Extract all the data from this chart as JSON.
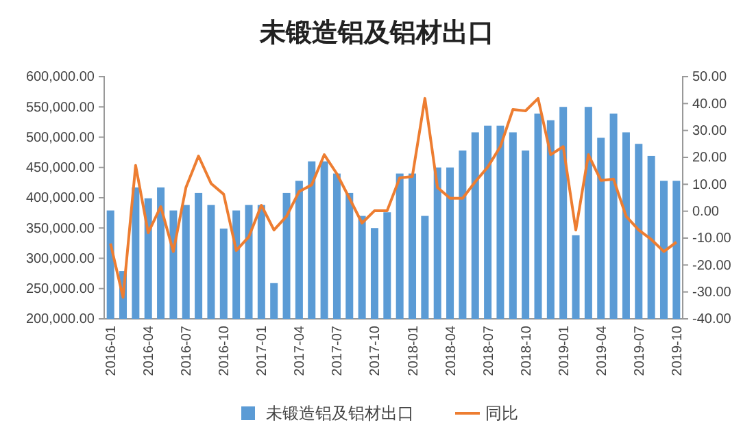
{
  "chart_data": {
    "type": "bar",
    "title": "未锻造铝及铝材出口",
    "categories": [
      "2016-01",
      null,
      null,
      "2016-04",
      null,
      null,
      "2016-07",
      null,
      null,
      "2016-10",
      null,
      null,
      "2017-01",
      null,
      null,
      "2017-04",
      null,
      null,
      "2017-07",
      null,
      null,
      "2017-10",
      null,
      null,
      "2018-01",
      null,
      null,
      "2018-04",
      null,
      null,
      "2018-07",
      null,
      null,
      "2018-10",
      null,
      null,
      "2019-01",
      null,
      null,
      "2019-04",
      null,
      null,
      "2019-07",
      null,
      null,
      "2019-10"
    ],
    "series": [
      {
        "name": "未锻造铝及铝材出口",
        "color": "#5b9bd5",
        "values": [
          379000,
          279000,
          417000,
          399000,
          417000,
          379000,
          388000,
          408000,
          388000,
          349000,
          379000,
          388000,
          388000,
          259000,
          408000,
          428000,
          460000,
          460000,
          440000,
          408000,
          370000,
          350000,
          376000,
          440000,
          440000,
          370000,
          450000,
          450000,
          478000,
          508000,
          519000,
          519000,
          508000,
          478000,
          539000,
          528000,
          550000,
          338000,
          550000,
          499000,
          539000,
          508000,
          489000,
          469000,
          428000,
          428000
        ]
      },
      {
        "name": "同比",
        "type": "line",
        "axis": "y2",
        "color": "#ed7d31",
        "values": [
          -12,
          -32,
          17,
          -8,
          1.7,
          -15,
          8.8,
          20.5,
          10.3,
          6.3,
          -14.6,
          -9.5,
          2.2,
          -7,
          -1.9,
          7.3,
          9.8,
          21,
          13.9,
          4.8,
          -4.4,
          0.2,
          0.2,
          12.4,
          12.9,
          41.9,
          8.8,
          4.8,
          4.8,
          10.9,
          16.4,
          24,
          37.8,
          37.3,
          41.9,
          21,
          24,
          -7,
          21,
          11.4,
          11.9,
          -1.9,
          -7,
          -10.5,
          -15,
          -11.5
        ]
      }
    ],
    "ylim": [
      200000,
      600000
    ],
    "yticks": [
      {
        "value": 200000,
        "label": "200,000.00"
      },
      {
        "value": 250000,
        "label": "250,000.00"
      },
      {
        "value": 300000,
        "label": "300,000.00"
      },
      {
        "value": 350000,
        "label": "350,000.00"
      },
      {
        "value": 400000,
        "label": "400,000.00"
      },
      {
        "value": 450000,
        "label": "450,000.00"
      },
      {
        "value": 500000,
        "label": "500,000.00"
      },
      {
        "value": 550000,
        "label": "550,000.00"
      },
      {
        "value": 600000,
        "label": "600,000.00"
      }
    ],
    "y2lim": [
      -40,
      50
    ],
    "y2ticks": [
      {
        "value": -40,
        "label": "-40.00"
      },
      {
        "value": -30,
        "label": "-30.00"
      },
      {
        "value": -20,
        "label": "-20.00"
      },
      {
        "value": -10,
        "label": "-10.00"
      },
      {
        "value": 0,
        "label": "0.00"
      },
      {
        "value": 10,
        "label": "10.00"
      },
      {
        "value": 20,
        "label": "20.00"
      },
      {
        "value": 30,
        "label": "30.00"
      },
      {
        "value": 40,
        "label": "40.00"
      },
      {
        "value": 50,
        "label": "50.00"
      }
    ],
    "grid": false,
    "legend": "bottom",
    "marker": "none",
    "line_style": "solid"
  }
}
